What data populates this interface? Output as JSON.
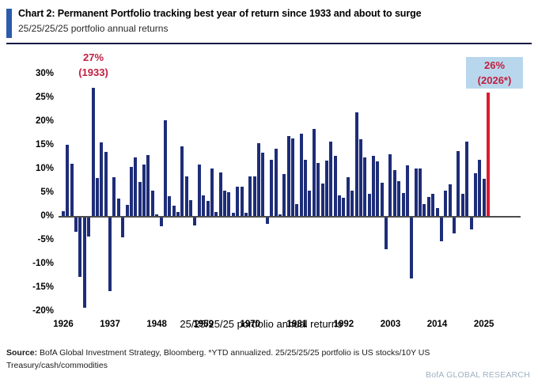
{
  "header": {
    "title": "Chart 2: Permanent Portfolio tracking best year of return since 1933 and about to surge",
    "subtitle": "25/25/25/25 portfolio annual returns"
  },
  "chart": {
    "center_label": "25/25/25/25 portfolio annual returns",
    "annotations": [
      {
        "id": "peak-1933",
        "line1": "27%",
        "line2": "(1933)",
        "boxed": false
      },
      {
        "id": "surge-2026",
        "line1": "26%",
        "line2": "(2026*)",
        "boxed": true
      }
    ]
  },
  "footer": {
    "source_label": "Source:",
    "source_text": " BofA Global Investment Strategy, Bloomberg. *YTD annualized. 25/25/25/25 portfolio is US stocks/10Y US Treasury/cash/commodities",
    "brand": "BofA GLOBAL RESEARCH"
  },
  "colors": {
    "bar_navy": "#1e2d78",
    "highlight_red": "#dd1a2e",
    "annotation_red": "#c01f40",
    "annotation_box_bg": "#b9d7ec",
    "accent_blue": "#2a5caa",
    "header_rule": "#141a45",
    "axis_line": "#4d4d4d",
    "brand_slate": "#9fb0c2"
  },
  "chart_data": {
    "type": "bar",
    "title": "25/25/25/25 portfolio annual returns",
    "y_unit": "%",
    "ylim": [
      -20,
      30
    ],
    "grid": false,
    "start_year": 1926,
    "end_year": 2026,
    "y_ticks": [
      30,
      25,
      20,
      15,
      10,
      5,
      0,
      -5,
      -10,
      -15,
      -20
    ],
    "x_tick_years": [
      1926,
      1937,
      1948,
      1959,
      1970,
      1981,
      1992,
      2003,
      2014,
      2025
    ],
    "highlight_year": 2026,
    "highlight_value": 26.0,
    "values": [
      1.0,
      15.0,
      11.0,
      -3.0,
      -12.5,
      -19.0,
      -4.0,
      27.0,
      8.0,
      15.5,
      13.5,
      -15.5,
      8.2,
      3.7,
      -4.2,
      2.3,
      10.4,
      12.3,
      7.1,
      10.8,
      12.9,
      5.3,
      0.3,
      -1.8,
      20.2,
      4.1,
      2.1,
      0.9,
      14.7,
      8.3,
      3.4,
      -1.7,
      10.8,
      4.4,
      3.1,
      10.0,
      0.8,
      9.2,
      5.3,
      5.0,
      0.7,
      6.2,
      6.1,
      0.7,
      8.4,
      8.3,
      15.4,
      13.4,
      -1.4,
      11.9,
      14.1,
      0.4,
      8.8,
      16.8,
      16.4,
      2.5,
      17.3,
      11.8,
      5.3,
      18.4,
      11.1,
      6.8,
      11.7,
      15.7,
      12.6,
      4.4,
      3.8,
      8.2,
      5.4,
      21.8,
      16.2,
      12.3,
      4.6,
      12.6,
      11.5,
      7.0,
      -6.7,
      13.0,
      9.7,
      7.3,
      4.9,
      10.6,
      -12.8,
      10.0,
      10.0,
      2.5,
      4.0,
      4.6,
      1.6,
      -5.0,
      5.4,
      6.7,
      -3.3,
      13.6,
      4.7,
      15.7,
      -2.5,
      9.0,
      11.9,
      7.9,
      26.0
    ]
  }
}
